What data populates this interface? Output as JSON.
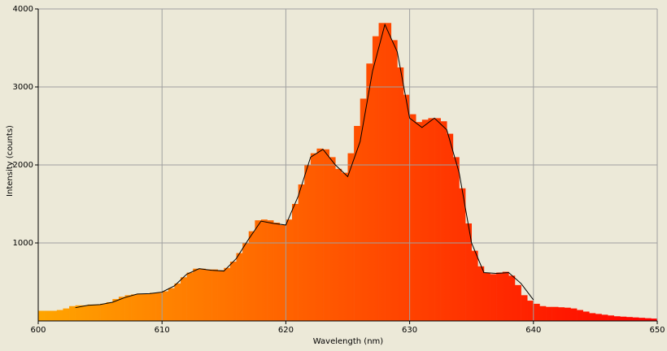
{
  "chart_data": {
    "type": "histogram",
    "xlabel": "Wavelength (nm)",
    "ylabel": "Intensity (counts)",
    "xlim": [
      600,
      650
    ],
    "ylim": [
      0,
      4000
    ],
    "xticks": [
      600,
      610,
      620,
      630,
      640,
      650
    ],
    "yticks": [
      1000,
      2000,
      3000,
      4000
    ],
    "grid": true,
    "gradient": [
      "#ffa500",
      "#ff0000"
    ],
    "bins": [
      600,
      600.5,
      601,
      601.5,
      602,
      602.5,
      603,
      603.5,
      604,
      604.5,
      605,
      605.5,
      606,
      606.5,
      607,
      607.5,
      608,
      608.5,
      609,
      609.5,
      610,
      610.5,
      611,
      611.5,
      612,
      612.5,
      613,
      613.5,
      614,
      614.5,
      615,
      615.5,
      616,
      616.5,
      617,
      617.5,
      618,
      618.5,
      619,
      619.5,
      620,
      620.5,
      621,
      621.5,
      622,
      622.5,
      623,
      623.5,
      624,
      624.5,
      625,
      625.5,
      626,
      626.5,
      627,
      627.5,
      628,
      628.5,
      629,
      629.5,
      630,
      630.5,
      631,
      631.5,
      632,
      632.5,
      633,
      633.5,
      634,
      634.5,
      635,
      635.5,
      636,
      636.5,
      637,
      637.5,
      638,
      638.5,
      639,
      639.5,
      640,
      640.5,
      641,
      641.5,
      642,
      642.5,
      643,
      643.5,
      644,
      644.5,
      645,
      645.5,
      646,
      646.5,
      647,
      647.5,
      648,
      648.5,
      649,
      649.5,
      650
    ],
    "counts": [
      130,
      130,
      130,
      140,
      160,
      190,
      200,
      200,
      210,
      210,
      220,
      240,
      280,
      310,
      330,
      340,
      350,
      350,
      360,
      360,
      380,
      420,
      480,
      560,
      620,
      670,
      670,
      660,
      660,
      650,
      680,
      760,
      870,
      1000,
      1150,
      1290,
      1300,
      1290,
      1260,
      1230,
      1300,
      1500,
      1750,
      2000,
      2150,
      2210,
      2200,
      2100,
      1950,
      1900,
      2150,
      2500,
      2850,
      3300,
      3650,
      3820,
      3820,
      3600,
      3250,
      2900,
      2650,
      2550,
      2580,
      2600,
      2600,
      2560,
      2400,
      2100,
      1700,
      1250,
      900,
      700,
      620,
      600,
      620,
      630,
      580,
      460,
      330,
      260,
      220,
      190,
      180,
      180,
      175,
      170,
      160,
      140,
      120,
      100,
      90,
      80,
      70,
      60,
      55,
      50,
      45,
      40,
      35,
      30
    ],
    "line": {
      "color": "#000000",
      "x": [
        603,
        604,
        605,
        606,
        607,
        608,
        609,
        610,
        611,
        612,
        613,
        614,
        615,
        616,
        617,
        618,
        619,
        620,
        621,
        622,
        623,
        624,
        625,
        626,
        627,
        628,
        629,
        630,
        631,
        632,
        633,
        634,
        635,
        636,
        637,
        638,
        639,
        640
      ],
      "values": [
        170,
        200,
        210,
        240,
        300,
        345,
        350,
        370,
        450,
        600,
        670,
        650,
        640,
        800,
        1050,
        1280,
        1250,
        1230,
        1600,
        2100,
        2200,
        2000,
        1850,
        2300,
        3200,
        3800,
        3450,
        2600,
        2480,
        2600,
        2450,
        1900,
        1000,
        620,
        610,
        620,
        480,
        270
      ]
    }
  }
}
